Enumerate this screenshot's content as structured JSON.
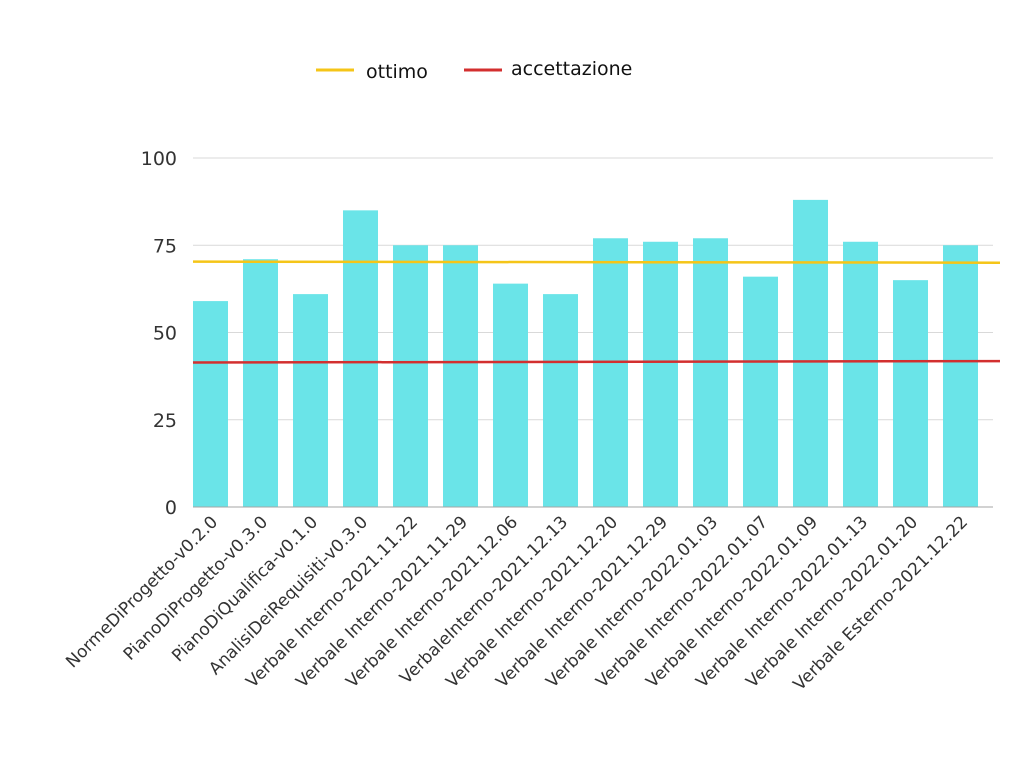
{
  "chart_data": {
    "type": "bar",
    "title": "",
    "xlabel": "",
    "ylabel": "",
    "ylim": [
      0,
      100
    ],
    "yticks": [
      0,
      25,
      50,
      75,
      100
    ],
    "grid": true,
    "legend_position": "top-center",
    "categories": [
      "NormeDiProgetto-v0.2.0",
      "PianoDiProgetto-v0.3.0",
      "PianoDiQualifica-v0.1.0",
      "AnalisiDeiRequisiti-v0.3.0",
      "Verbale Interno-2021.11.22",
      "Verbale Interno-2021.11.29",
      "Verbale Interno-2021.12.06",
      "VerbaleInterno-2021.12.13",
      "Verbale Interno-2021.12.20",
      "Verbale Interno-2021.12.29",
      "Verbale Interno-2022.01.03",
      "Verbale Interno-2022.01.07",
      "Verbale Interno-2022.01.09",
      "Verbale Interno-2022.01.13",
      "Verbale Interno-2022.01.20",
      "Verbale Esterno-2021.12.22"
    ],
    "values": [
      59,
      71,
      61,
      85,
      75,
      75,
      64,
      61,
      77,
      76,
      77,
      66,
      88,
      76,
      65,
      75
    ],
    "bar_color": "#6ae4e8",
    "lines": [
      {
        "name": "ottimo",
        "color": "#f5c518",
        "start": 70.3,
        "end": 70.0
      },
      {
        "name": "accettazione",
        "color": "#d32f2f",
        "start": 41.4,
        "end": 41.8
      }
    ]
  }
}
